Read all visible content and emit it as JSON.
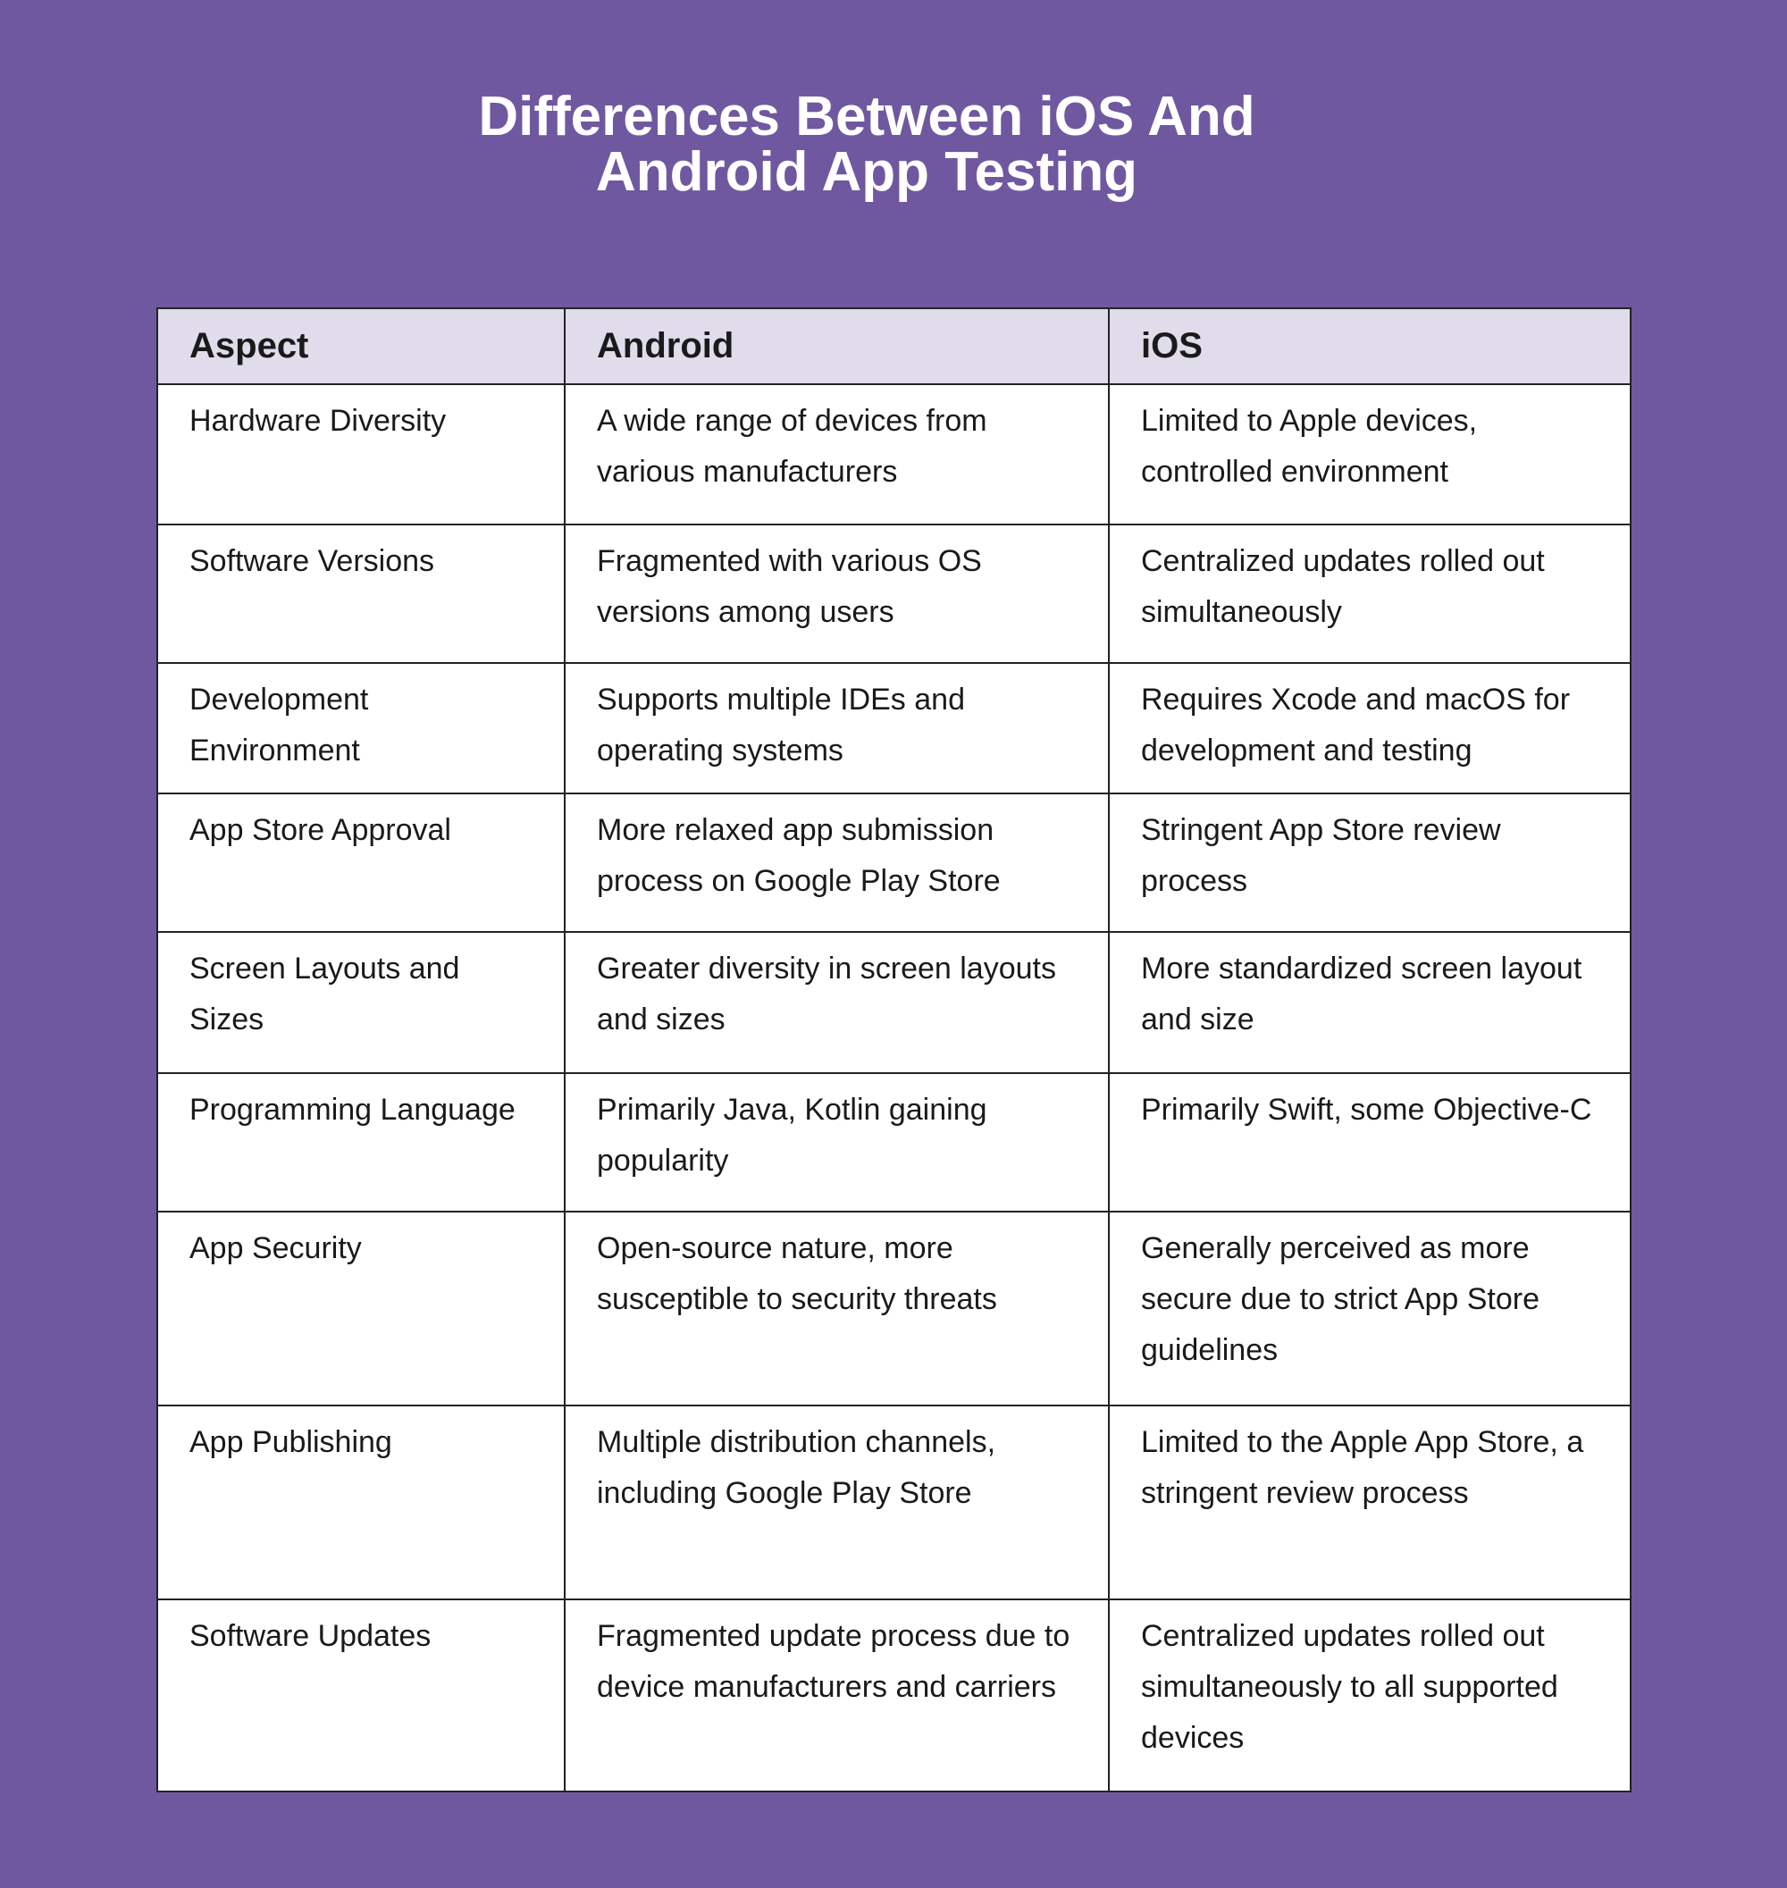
{
  "title": [
    "Differences Between iOS And",
    "Android App Testing"
  ],
  "colors": {
    "background": "#6f58a0",
    "header": "#e0dcec",
    "border": "#222222"
  },
  "table": {
    "headers": [
      "Aspect",
      "Android",
      "iOS"
    ],
    "rows": [
      [
        "Hardware Diversity",
        "A wide range of devices from various manufacturers",
        "Limited to Apple devices, controlled environment"
      ],
      [
        "Software Versions",
        "Fragmented with various OS versions among users",
        "Centralized updates rolled out simultaneously"
      ],
      [
        "Development Environment",
        "Supports multiple IDEs and operating systems",
        "Requires Xcode and macOS for development and testing"
      ],
      [
        "App Store Approval",
        "More relaxed app submission process on Google Play Store",
        "Stringent App Store review process"
      ],
      [
        "Screen Layouts and Sizes",
        "Greater diversity in screen layouts and sizes",
        "More standardized screen layout and size"
      ],
      [
        "Programming Language",
        "Primarily Java, Kotlin gaining popularity",
        "Primarily Swift, some Objective-C"
      ],
      [
        "App Security",
        "Open-source nature, more susceptible to security threats",
        "Generally perceived as more secure due to strict App Store guidelines"
      ],
      [
        "App Publishing",
        "Multiple distribution channels, including Google Play Store",
        "Limited to the Apple App Store, a stringent review process"
      ],
      [
        "Software Updates",
        "Fragmented update process due to device manufacturers and carriers",
        "Centralized updates rolled out simultaneously to all supported devices"
      ]
    ]
  }
}
